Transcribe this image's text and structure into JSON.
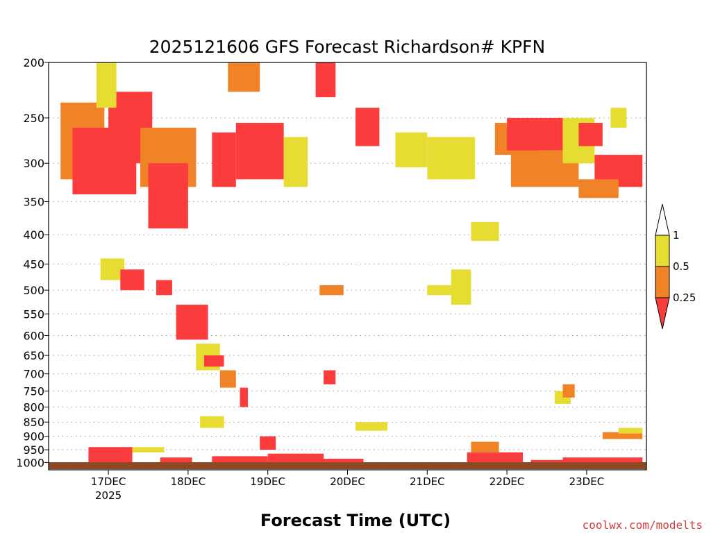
{
  "chart_data": {
    "type": "heatmap",
    "title": "2025121606 GFS Forecast Richardson# KPFN",
    "xlabel": "Forecast Time (UTC)",
    "ylabel": "",
    "y_scale": "log",
    "y_reversed": true,
    "ylim": [
      1030,
      200
    ],
    "y_ticks": [
      200,
      250,
      300,
      350,
      400,
      450,
      500,
      550,
      600,
      650,
      700,
      750,
      800,
      850,
      900,
      950,
      1000
    ],
    "xlim_days": [
      "16DEC 06Z",
      "23DEC 18Z"
    ],
    "x_ticks": [
      {
        "label": "17DEC",
        "sublabel": "2025",
        "day": 17
      },
      {
        "label": "18DEC",
        "sublabel": "",
        "day": 18
      },
      {
        "label": "19DEC",
        "sublabel": "",
        "day": 19
      },
      {
        "label": "20DEC",
        "sublabel": "",
        "day": 20
      },
      {
        "label": "21DEC",
        "sublabel": "",
        "day": 21
      },
      {
        "label": "22DEC",
        "sublabel": "",
        "day": 22
      },
      {
        "label": "23DEC",
        "sublabel": "",
        "day": 23
      }
    ],
    "grid": "horizontal dotted at pressure levels",
    "colorbar": {
      "placement": "right",
      "labels": [
        "1",
        "0.5",
        "0.25"
      ],
      "bins": [
        {
          "range": "0.5-1",
          "color": "#e6dc32"
        },
        {
          "range": "0.25-0.5",
          "color": "#f08228"
        },
        {
          "range": "<0.25",
          "color": "#fa3c3c"
        }
      ]
    },
    "colors": {
      "low": "#fa3c3c",
      "mid": "#f08228",
      "high": "#e6dc32",
      "ground": "#8b4a24"
    },
    "regions": [
      {
        "t0": 16.4,
        "t1": 16.95,
        "p0": 235,
        "p1": 320,
        "cat": "mid"
      },
      {
        "t0": 16.55,
        "t1": 17.35,
        "p0": 260,
        "p1": 340,
        "cat": "low"
      },
      {
        "t0": 17.0,
        "t1": 17.55,
        "p0": 225,
        "p1": 300,
        "cat": "low"
      },
      {
        "t0": 16.85,
        "t1": 17.1,
        "p0": 200,
        "p1": 240,
        "cat": "high"
      },
      {
        "t0": 17.4,
        "t1": 18.1,
        "p0": 260,
        "p1": 330,
        "cat": "mid"
      },
      {
        "t0": 17.5,
        "t1": 18.0,
        "p0": 300,
        "p1": 390,
        "cat": "low"
      },
      {
        "t0": 18.3,
        "t1": 18.6,
        "p0": 265,
        "p1": 330,
        "cat": "low"
      },
      {
        "t0": 18.6,
        "t1": 19.2,
        "p0": 255,
        "p1": 320,
        "cat": "low"
      },
      {
        "t0": 19.2,
        "t1": 19.5,
        "p0": 270,
        "p1": 330,
        "cat": "high"
      },
      {
        "t0": 18.5,
        "t1": 18.9,
        "p0": 200,
        "p1": 225,
        "cat": "mid"
      },
      {
        "t0": 19.6,
        "t1": 19.85,
        "p0": 200,
        "p1": 230,
        "cat": "low"
      },
      {
        "t0": 20.1,
        "t1": 20.4,
        "p0": 240,
        "p1": 280,
        "cat": "low"
      },
      {
        "t0": 20.6,
        "t1": 21.0,
        "p0": 265,
        "p1": 305,
        "cat": "high"
      },
      {
        "t0": 21.0,
        "t1": 21.6,
        "p0": 270,
        "p1": 320,
        "cat": "high"
      },
      {
        "t0": 21.85,
        "t1": 22.4,
        "p0": 255,
        "p1": 290,
        "cat": "mid"
      },
      {
        "t0": 22.0,
        "t1": 22.7,
        "p0": 250,
        "p1": 285,
        "cat": "low"
      },
      {
        "t0": 22.05,
        "t1": 22.9,
        "p0": 285,
        "p1": 330,
        "cat": "mid"
      },
      {
        "t0": 22.7,
        "t1": 23.1,
        "p0": 250,
        "p1": 300,
        "cat": "high"
      },
      {
        "t0": 22.9,
        "t1": 23.2,
        "p0": 255,
        "p1": 280,
        "cat": "low"
      },
      {
        "t0": 23.1,
        "t1": 23.7,
        "p0": 290,
        "p1": 330,
        "cat": "low"
      },
      {
        "t0": 22.9,
        "t1": 23.4,
        "p0": 320,
        "p1": 345,
        "cat": "mid"
      },
      {
        "t0": 23.3,
        "t1": 23.5,
        "p0": 240,
        "p1": 260,
        "cat": "high"
      },
      {
        "t0": 16.9,
        "t1": 17.2,
        "p0": 440,
        "p1": 480,
        "cat": "high"
      },
      {
        "t0": 17.15,
        "t1": 17.45,
        "p0": 460,
        "p1": 500,
        "cat": "low"
      },
      {
        "t0": 17.6,
        "t1": 17.8,
        "p0": 480,
        "p1": 510,
        "cat": "low"
      },
      {
        "t0": 17.85,
        "t1": 18.25,
        "p0": 530,
        "p1": 610,
        "cat": "low"
      },
      {
        "t0": 18.1,
        "t1": 18.4,
        "p0": 620,
        "p1": 690,
        "cat": "high"
      },
      {
        "t0": 18.2,
        "t1": 18.45,
        "p0": 650,
        "p1": 680,
        "cat": "low"
      },
      {
        "t0": 18.4,
        "t1": 18.6,
        "p0": 690,
        "p1": 740,
        "cat": "mid"
      },
      {
        "t0": 18.65,
        "t1": 18.75,
        "p0": 740,
        "p1": 800,
        "cat": "low"
      },
      {
        "t0": 19.7,
        "t1": 19.85,
        "p0": 690,
        "p1": 730,
        "cat": "low"
      },
      {
        "t0": 19.65,
        "t1": 19.95,
        "p0": 490,
        "p1": 510,
        "cat": "mid"
      },
      {
        "t0": 21.0,
        "t1": 21.3,
        "p0": 490,
        "p1": 510,
        "cat": "high"
      },
      {
        "t0": 21.3,
        "t1": 21.55,
        "p0": 460,
        "p1": 530,
        "cat": "high"
      },
      {
        "t0": 21.55,
        "t1": 21.9,
        "p0": 380,
        "p1": 410,
        "cat": "high"
      },
      {
        "t0": 22.6,
        "t1": 22.8,
        "p0": 750,
        "p1": 790,
        "cat": "high"
      },
      {
        "t0": 22.7,
        "t1": 22.85,
        "p0": 730,
        "p1": 770,
        "cat": "mid"
      },
      {
        "t0": 20.1,
        "t1": 20.5,
        "p0": 850,
        "p1": 880,
        "cat": "high"
      },
      {
        "t0": 18.15,
        "t1": 18.45,
        "p0": 830,
        "p1": 870,
        "cat": "high"
      },
      {
        "t0": 18.9,
        "t1": 19.1,
        "p0": 900,
        "p1": 950,
        "cat": "low"
      },
      {
        "t0": 16.75,
        "t1": 17.3,
        "p0": 940,
        "p1": 1000,
        "cat": "low"
      },
      {
        "t0": 17.3,
        "t1": 17.7,
        "p0": 940,
        "p1": 960,
        "cat": "high"
      },
      {
        "t0": 17.65,
        "t1": 18.05,
        "p0": 980,
        "p1": 1010,
        "cat": "low"
      },
      {
        "t0": 18.3,
        "t1": 19.0,
        "p0": 975,
        "p1": 1010,
        "cat": "low"
      },
      {
        "t0": 19.0,
        "t1": 19.7,
        "p0": 965,
        "p1": 1010,
        "cat": "low"
      },
      {
        "t0": 19.7,
        "t1": 20.2,
        "p0": 985,
        "p1": 1010,
        "cat": "low"
      },
      {
        "t0": 21.5,
        "t1": 22.2,
        "p0": 960,
        "p1": 1010,
        "cat": "low"
      },
      {
        "t0": 21.55,
        "t1": 21.9,
        "p0": 920,
        "p1": 960,
        "cat": "mid"
      },
      {
        "t0": 22.3,
        "t1": 23.0,
        "p0": 990,
        "p1": 1010,
        "cat": "low"
      },
      {
        "t0": 22.7,
        "t1": 23.7,
        "p0": 980,
        "p1": 1010,
        "cat": "low"
      },
      {
        "t0": 23.2,
        "t1": 23.7,
        "p0": 885,
        "p1": 910,
        "cat": "mid"
      },
      {
        "t0": 23.4,
        "t1": 23.7,
        "p0": 870,
        "p1": 890,
        "cat": "high"
      }
    ]
  },
  "credit": "coolwx.com/modelts"
}
